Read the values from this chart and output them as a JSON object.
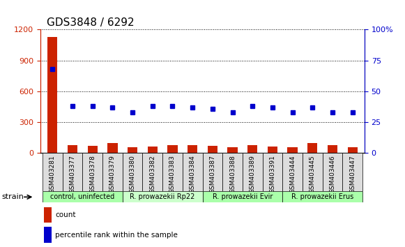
{
  "title": "GDS3848 / 6292",
  "samples": [
    "GSM403281",
    "GSM403377",
    "GSM403378",
    "GSM403379",
    "GSM403380",
    "GSM403382",
    "GSM403383",
    "GSM403384",
    "GSM403387",
    "GSM403388",
    "GSM403389",
    "GSM403391",
    "GSM403444",
    "GSM403445",
    "GSM403446",
    "GSM403447"
  ],
  "counts": [
    1130,
    80,
    70,
    95,
    60,
    65,
    80,
    75,
    70,
    60,
    80,
    65,
    60,
    100,
    75,
    55
  ],
  "percentiles": [
    68,
    38,
    38,
    37,
    33,
    38,
    38,
    37,
    36,
    33,
    38,
    37,
    33,
    37,
    33,
    33
  ],
  "bar_color": "#cc2200",
  "dot_color": "#0000cc",
  "ylim_left": [
    0,
    1200
  ],
  "ylim_right": [
    0,
    100
  ],
  "yticks_left": [
    0,
    300,
    600,
    900,
    1200
  ],
  "yticks_right": [
    0,
    25,
    50,
    75,
    100
  ],
  "ytick_labels_left": [
    "0",
    "300",
    "600",
    "900",
    "1200"
  ],
  "ytick_labels_right": [
    "0",
    "25",
    "50",
    "75",
    "100%"
  ],
  "groups": [
    {
      "label": "control, uninfected",
      "start": 0,
      "end": 4,
      "color": "#aaffaa"
    },
    {
      "label": "R. prowazekii Rp22",
      "start": 4,
      "end": 8,
      "color": "#ccffcc"
    },
    {
      "label": "R. prowazekii Evir",
      "start": 8,
      "end": 12,
      "color": "#aaffaa"
    },
    {
      "label": "R. prowazekii Erus",
      "start": 12,
      "end": 16,
      "color": "#aaffaa"
    }
  ],
  "strain_label": "strain",
  "legend_count_color": "#cc2200",
  "legend_dot_color": "#0000cc",
  "legend_count_label": "count",
  "legend_dot_label": "percentile rank within the sample",
  "grid_color": "#000000",
  "bg_color": "#ffffff",
  "tick_area_color": "#dddddd",
  "title_fontsize": 11,
  "axis_fontsize": 8,
  "label_fontsize": 8
}
